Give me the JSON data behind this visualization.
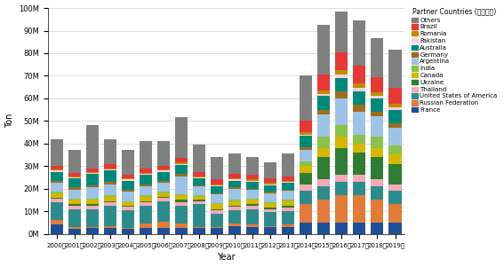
{
  "years": [
    "2000年",
    "2001年",
    "2002年",
    "2003年",
    "2004年",
    "2005年",
    "2006年",
    "2007年",
    "2008年",
    "2009年",
    "2010年",
    "2011年",
    "2012年",
    "2013年",
    "2014年",
    "2015年",
    "2016年",
    "2017年",
    "2018年",
    "2019年"
  ],
  "countries": [
    "France",
    "Russian Federation",
    "United States of America",
    "Thailand",
    "Ukraine",
    "Canada",
    "India",
    "Argentina",
    "Germany",
    "Australia",
    "Pakistan",
    "Romania",
    "Brazil",
    "Others"
  ],
  "colors": {
    "France": "#1f4e96",
    "Russian Federation": "#e07b39",
    "United States of America": "#2e8b8b",
    "Thailand": "#f4a9b8",
    "Ukraine": "#2e7d32",
    "Canada": "#d4b800",
    "India": "#8bc34a",
    "Argentina": "#9dc3e6",
    "Germany": "#9c6d1e",
    "Australia": "#00897b",
    "Pakistan": "#f9d0dc",
    "Romania": "#bf8c00",
    "Brazil": "#e53935",
    "Others": "#808080"
  },
  "data": {
    "France": [
      4000000,
      2000000,
      2500000,
      2500000,
      2000000,
      2500000,
      2500000,
      2500000,
      2500000,
      2500000,
      3500000,
      3000000,
      3000000,
      3000000,
      5000000,
      5000000,
      5000000,
      5000000,
      5000000,
      5000000
    ],
    "Russian Federation": [
      2000000,
      1000000,
      500000,
      1000000,
      500000,
      2000000,
      3000000,
      2000000,
      500000,
      500000,
      1000000,
      1000000,
      500000,
      1000000,
      8000000,
      10000000,
      12000000,
      12000000,
      10000000,
      8000000
    ],
    "United States of America": [
      8000000,
      8000000,
      8000000,
      9000000,
      8000000,
      8000000,
      9000000,
      8000000,
      10000000,
      6000000,
      6000000,
      7000000,
      6000000,
      6000000,
      6000000,
      6000000,
      6000000,
      6000000,
      6000000,
      6000000
    ],
    "Thailand": [
      1500000,
      1500000,
      1500000,
      1500000,
      1500000,
      1500000,
      1500000,
      1500000,
      1500000,
      1500000,
      1500000,
      1500000,
      1500000,
      1500000,
      3000000,
      3000000,
      3000000,
      3000000,
      3000000,
      3000000
    ],
    "Ukraine": [
      500000,
      500000,
      500000,
      500000,
      500000,
      500000,
      500000,
      1000000,
      500000,
      500000,
      500000,
      500000,
      500000,
      1000000,
      5000000,
      10000000,
      12000000,
      10000000,
      10000000,
      9000000
    ],
    "Canada": [
      2000000,
      2000000,
      2000000,
      2000000,
      1500000,
      2000000,
      1500000,
      2000000,
      1500000,
      2000000,
      2000000,
      2000000,
      2000000,
      2000000,
      3000000,
      4000000,
      5000000,
      4000000,
      4000000,
      4000000
    ],
    "India": [
      500000,
      500000,
      500000,
      500000,
      500000,
      500000,
      500000,
      500000,
      500000,
      500000,
      500000,
      500000,
      500000,
      500000,
      2000000,
      5000000,
      5000000,
      4000000,
      5000000,
      4000000
    ],
    "Argentina": [
      4000000,
      4000000,
      5000000,
      5000000,
      4000000,
      4000000,
      4000000,
      8000000,
      4000000,
      4000000,
      5000000,
      4000000,
      4000000,
      4000000,
      5000000,
      10000000,
      12000000,
      10000000,
      9000000,
      8000000
    ],
    "Germany": [
      1000000,
      1000000,
      1000000,
      1000000,
      1000000,
      1000000,
      1000000,
      1000000,
      500000,
      500000,
      500000,
      500000,
      500000,
      500000,
      1500000,
      2000000,
      3000000,
      3000000,
      2000000,
      2000000
    ],
    "Australia": [
      4000000,
      4000000,
      5000000,
      5000000,
      4000000,
      4000000,
      4000000,
      4000000,
      3000000,
      3000000,
      3000000,
      3000000,
      3000000,
      3000000,
      5000000,
      6000000,
      6000000,
      6000000,
      6000000,
      6000000
    ],
    "Pakistan": [
      500000,
      500000,
      500000,
      500000,
      500000,
      500000,
      500000,
      500000,
      500000,
      500000,
      500000,
      500000,
      500000,
      500000,
      500000,
      1000000,
      1500000,
      1500000,
      1000000,
      1000000
    ],
    "Romania": [
      500000,
      500000,
      500000,
      500000,
      500000,
      500000,
      500000,
      500000,
      500000,
      500000,
      500000,
      500000,
      500000,
      500000,
      1000000,
      1500000,
      2000000,
      2000000,
      1500000,
      1500000
    ],
    "Brazil": [
      1500000,
      1500000,
      1500000,
      2000000,
      1500000,
      2000000,
      1500000,
      2000000,
      2000000,
      2000000,
      2000000,
      2000000,
      2000000,
      2000000,
      5000000,
      7000000,
      8000000,
      8000000,
      7000000,
      7000000
    ],
    "Others": [
      12000000,
      10000000,
      19000000,
      11000000,
      11000000,
      12000000,
      11000000,
      18000000,
      12000000,
      10000000,
      9000000,
      8000000,
      7000000,
      10000000,
      20000000,
      22000000,
      18000000,
      20000000,
      17000000,
      17000000
    ]
  },
  "legend_title": "Partner Countries (メイン国)",
  "xlabel": "Year",
  "ylabel": "Ton",
  "ylim": [
    0,
    100000000
  ],
  "yticks": [
    0,
    10000000,
    20000000,
    30000000,
    40000000,
    50000000,
    60000000,
    70000000,
    80000000,
    90000000,
    100000000
  ],
  "ytick_labels": [
    "0M",
    "10M",
    "20M",
    "30M",
    "40M",
    "50M",
    "60M",
    "70M",
    "80M",
    "90M",
    "100M"
  ]
}
